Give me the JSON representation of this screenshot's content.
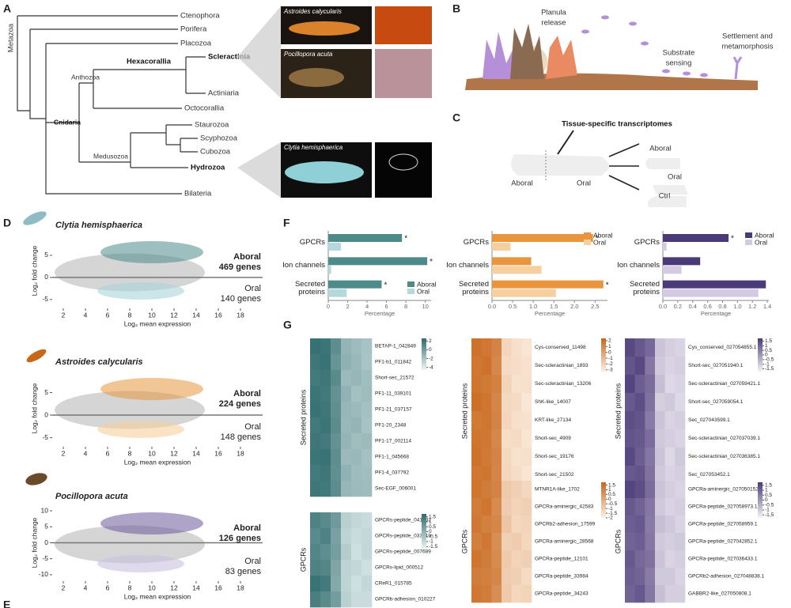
{
  "panels": [
    "A",
    "B",
    "C",
    "D",
    "E",
    "F",
    "G"
  ],
  "A": {
    "root": "Metazoa",
    "taxa": [
      "Ctenophora",
      "Porifera",
      "Placozoa",
      "Scleractinia",
      "Actiniaria",
      "Octocorallia",
      "Staurozoa",
      "Scyphozoa",
      "Cubozoa",
      "Hydrozoa",
      "Bilateria"
    ],
    "clades": [
      "Hexacorallia",
      "Anthozoa",
      "Cnidaria",
      "Medusozoa"
    ],
    "photos": [
      "Astroides calycularis",
      "Pocillopora acuta",
      "Clytia hemisphaerica"
    ]
  },
  "B": {
    "labels": [
      [
        "Planula",
        "release"
      ],
      [
        "Substrate",
        "sensing"
      ],
      [
        "Settlement and",
        "metamorphosis"
      ]
    ]
  },
  "C": {
    "title": "Tissue-specific transcriptomes",
    "labels": [
      "Aboral",
      "Oral",
      "Aboral",
      "Oral",
      "Ctrl"
    ]
  },
  "chart_data": [
    {
      "type": "scatter",
      "title": "Clytia hemisphaerica",
      "xlabel": "Log₂ mean expression",
      "ylabel": "Log₂ fold change",
      "xlim": [
        1,
        20
      ],
      "xticks": [
        2,
        4,
        6,
        8,
        10,
        12,
        14,
        16,
        18
      ],
      "ylim": [
        -7,
        10
      ],
      "yticks": [
        -5,
        0,
        5
      ],
      "colors": [
        "#4f8a8b",
        "#a9d3d8"
      ],
      "annotations": [
        "Aboral",
        "469 genes",
        "Oral",
        "140 genes"
      ]
    },
    {
      "type": "scatter",
      "title": "Astroides calycularis",
      "xlabel": "Log₂ mean expression",
      "ylabel": "Log₂ fold change",
      "xlim": [
        1,
        20
      ],
      "xticks": [
        2,
        4,
        6,
        8,
        10,
        12,
        14,
        16,
        18
      ],
      "ylim": [
        -7,
        10
      ],
      "yticks": [
        -5,
        0,
        5
      ],
      "colors": [
        "#e8953e",
        "#f6cf9f"
      ],
      "annotations": [
        "Aboral",
        "224 genes",
        "Oral",
        "148 genes"
      ]
    },
    {
      "type": "scatter",
      "title": "Pocillopora acuta",
      "xlabel": "Log₂ mean expression",
      "ylabel": "Log₂ fold change",
      "xlim": [
        1,
        20
      ],
      "xticks": [
        2,
        4,
        6,
        8,
        10,
        12,
        14,
        16,
        18
      ],
      "ylim": [
        -12,
        12
      ],
      "yticks": [
        -10,
        -5,
        0,
        5,
        10
      ],
      "colors": [
        "#6a5a9a",
        "#c9bfe0"
      ],
      "annotations": [
        "Aboral",
        "126 genes",
        "Oral",
        "83 genes"
      ]
    },
    {
      "type": "bar",
      "orientation": "horizontal",
      "categories": [
        "GPCRs",
        "Ion channels",
        "Secreted proteins"
      ],
      "series": [
        {
          "name": "Aboral",
          "color": "#4f8a8b",
          "values": [
            7.6,
            10.2,
            5.5
          ]
        },
        {
          "name": "Oral",
          "color": "#b5d8dc",
          "values": [
            1.3,
            0.3,
            1.9
          ]
        }
      ],
      "xlim": [
        0,
        10.6
      ],
      "xticks": [
        0,
        2,
        4,
        6,
        8,
        10
      ],
      "xlabel": "Percentage",
      "legend": "bottom right",
      "annotations": [
        {
          "text": "*",
          "category": "GPCRs",
          "series": "Aboral"
        },
        {
          "text": "*",
          "category": "Ion channels",
          "series": "Aboral"
        },
        {
          "text": "*",
          "category": "Secreted proteins",
          "series": "Aboral"
        }
      ]
    },
    {
      "type": "bar",
      "orientation": "horizontal",
      "categories": [
        "GPCRs",
        "Ion channels",
        "Secreted proteins"
      ],
      "series": [
        {
          "name": "Aboral",
          "color": "#e8953e",
          "values": [
            2.45,
            0.95,
            2.7
          ]
        },
        {
          "name": "Oral",
          "color": "#f6cf9f",
          "values": [
            0.45,
            1.2,
            1.55
          ]
        }
      ],
      "xlim": [
        0,
        2.8
      ],
      "xticks": [
        {
          "value": 0,
          "label": "0.0"
        },
        0.5,
        {
          "value": 1,
          "label": "1.0"
        },
        1.5,
        {
          "value": 2,
          "label": "2.0"
        },
        2.5
      ],
      "xlabel": "Percentage",
      "legend": "top right",
      "annotations": [
        {
          "text": "*",
          "category": "GPCRs",
          "series": "Aboral"
        },
        {
          "text": "*",
          "category": "Secreted proteins",
          "series": "Aboral"
        }
      ]
    },
    {
      "type": "bar",
      "orientation": "horizontal",
      "categories": [
        "GPCRs",
        "Ion channels",
        "Secreted proteins"
      ],
      "series": [
        {
          "name": "Aboral",
          "color": "#4b3a78",
          "values": [
            0.88,
            0.5,
            1.38
          ]
        },
        {
          "name": "Oral",
          "color": "#d4cbe3",
          "values": [
            0.05,
            0.25,
            1.28
          ]
        }
      ],
      "xlim": [
        0,
        1.42
      ],
      "xticks": [
        {
          "value": 0,
          "label": "0.0"
        },
        0.2,
        0.4,
        0.6,
        0.8,
        {
          "value": 1,
          "label": "1.0"
        },
        1.2,
        1.4
      ],
      "xlabel": "Percentage",
      "legend": "top right",
      "annotations": [
        {
          "text": "*",
          "category": "GPCRs",
          "series": "Aboral"
        }
      ]
    },
    {
      "type": "heatmap",
      "label": "Secreted proteins",
      "rows": [
        "BETAP-1_042849",
        "PF1-b1_011842",
        "Short-sec_21572",
        "PF1-11_039101",
        "PF1-21_037157",
        "PF1-20_2348",
        "PF1-17_002114",
        "PF1-1_045668",
        "PF1-4_037792",
        "Sec-EGF_006001"
      ],
      "values": [
        [
          2.3,
          2.1,
          0.8,
          -1.2,
          -1.6,
          -1.9
        ],
        [
          2.0,
          2.2,
          0.5,
          -1.0,
          -1.4,
          -2.0
        ],
        [
          1.8,
          2.0,
          1.0,
          -1.5,
          -1.3,
          -1.7
        ],
        [
          2.1,
          1.9,
          0.6,
          -1.1,
          -1.8,
          -1.6
        ],
        [
          2.2,
          2.0,
          0.7,
          -1.3,
          -1.5,
          -1.8
        ],
        [
          1.9,
          2.1,
          0.9,
          -1.4,
          -1.2,
          -1.9
        ],
        [
          2.0,
          1.8,
          0.6,
          -1.2,
          -1.7,
          -1.5
        ],
        [
          2.1,
          2.2,
          0.8,
          -1.5,
          -1.4,
          -1.8
        ],
        [
          1.8,
          2.0,
          0.7,
          -1.1,
          -1.6,
          -1.7
        ],
        [
          2.0,
          1.9,
          0.9,
          -1.3,
          -1.5,
          -1.6
        ]
      ],
      "colors": [
        "#eef6f6",
        "#2f6b6e"
      ],
      "clim": [
        -4.6,
        2.6
      ],
      "cticks": [
        2,
        0,
        -2,
        -4
      ]
    },
    {
      "type": "heatmap",
      "label": "GPCRs",
      "rows": [
        "GPCRs-peptide_041592",
        "GPCRs-peptide_033219",
        "GPCRs-peptide_007689",
        "GPCRs-lipid_000512",
        "CReR1_015785",
        "GPCRb-adhesion_010227"
      ],
      "values": [
        [
          1.2,
          1.0,
          0.6,
          -0.8,
          -1.0,
          -1.1
        ],
        [
          1.0,
          1.2,
          0.4,
          -0.9,
          -1.1,
          -1.0
        ],
        [
          1.1,
          0.9,
          0.5,
          -0.7,
          -1.2,
          -1.0
        ],
        [
          1.2,
          1.1,
          0.3,
          -0.9,
          -1.0,
          -1.2
        ],
        [
          1.6,
          1.4,
          0.2,
          -0.9,
          -1.2,
          -1.0
        ],
        [
          1.3,
          1.0,
          0.5,
          -0.8,
          -1.1,
          -1.1
        ]
      ],
      "colors": [
        "#eef6f6",
        "#2f6b6e"
      ],
      "clim": [
        -1.8,
        1.8
      ],
      "cticks": [
        1.5,
        1,
        0.5,
        0,
        -0.5,
        -1,
        -1.5
      ]
    },
    {
      "type": "heatmap",
      "label": "Secreted proteins",
      "rows": [
        "Cys-conserved_11498",
        "Sec-scleractinian_1893",
        "Sec-scleractinian_13206",
        "ShK-like_14007",
        "KRT-like_27134",
        "Short-sec_4909",
        "Short-sec_19176",
        "Short-sec_21502"
      ],
      "values": [
        [
          1.9,
          1.7,
          1.2,
          -2.2,
          -2.6,
          -2.8
        ],
        [
          1.7,
          1.9,
          1.0,
          -2.4,
          -2.5,
          -2.7
        ],
        [
          1.8,
          1.6,
          1.3,
          -2.1,
          -2.7,
          -2.6
        ],
        [
          2.0,
          1.8,
          1.1,
          -2.3,
          -2.4,
          -2.9
        ],
        [
          1.6,
          1.8,
          1.2,
          -2.2,
          -2.6,
          -2.7
        ],
        [
          1.8,
          1.7,
          1.0,
          -2.5,
          -2.4,
          -2.8
        ],
        [
          1.9,
          1.6,
          1.2,
          -2.3,
          -2.7,
          -2.6
        ],
        [
          1.7,
          1.8,
          1.1,
          -2.2,
          -2.5,
          -2.8
        ]
      ],
      "colors": [
        "#fdf1e4",
        "#c8661a"
      ],
      "clim": [
        -3.3,
        2.4
      ],
      "cticks": [
        2,
        1,
        0,
        -1,
        -2,
        -3
      ]
    },
    {
      "type": "heatmap",
      "label": "GPCRs",
      "rows": [
        "MTNR1A-like_1702",
        "GPCRa-aminergic_42583",
        "GPCRb2-adhesion_17599",
        "GPCRa-aminergic_28568",
        "GPCRa-peptide_12101",
        "GPCRa-peptide_33984",
        "GPCRa-peptide_34243"
      ],
      "values": [
        [
          1.4,
          1.2,
          1.0,
          -0.9,
          -1.1,
          -1.3
        ],
        [
          1.2,
          1.4,
          0.8,
          -1.0,
          -1.2,
          -1.1
        ],
        [
          1.3,
          1.1,
          0.9,
          -0.8,
          -1.3,
          -1.2
        ],
        [
          1.1,
          1.3,
          0.7,
          -1.1,
          -1.0,
          -1.3
        ],
        [
          1.4,
          1.2,
          0.8,
          -0.9,
          -1.2,
          -1.1
        ],
        [
          1.2,
          1.1,
          0.9,
          -1.0,
          -1.1,
          -1.4
        ],
        [
          1.3,
          1.2,
          0.7,
          -0.9,
          -1.3,
          -1.2
        ]
      ],
      "colors": [
        "#fdf1e4",
        "#c8661a"
      ],
      "clim": [
        -2,
        1.8
      ],
      "cticks": [
        1.5,
        1,
        0.5,
        0,
        -0.5,
        -1,
        -1.5,
        -2
      ]
    },
    {
      "type": "heatmap",
      "label": "Secreted proteins",
      "rows": [
        "Cys_conserved_027054855.1",
        "Short-sec_027051940.1",
        "Sec-scleractinian_027059421.1",
        "Short-sec_027059054.1",
        "Sec_027043599.1",
        "Sec-scleractinian_027037039.1",
        "Sec-scleractinian_027036385.1",
        "Sec_027053452.1"
      ],
      "values": [
        [
          1.5,
          1.2,
          0.9,
          -0.9,
          -1.1,
          -1.2
        ],
        [
          1.3,
          1.5,
          0.6,
          -1.0,
          -1.2,
          -1.1
        ],
        [
          1.6,
          1.1,
          0.8,
          -0.8,
          -1.3,
          -1.2
        ],
        [
          1.2,
          1.4,
          0.7,
          -1.1,
          -1.0,
          -1.3
        ],
        [
          1.4,
          1.3,
          0.5,
          -0.9,
          -1.2,
          -1.1
        ],
        [
          1.3,
          1.2,
          0.8,
          -1.0,
          -1.1,
          -1.2
        ],
        [
          1.5,
          1.1,
          0.6,
          -0.9,
          -1.3,
          -1.0
        ],
        [
          1.2,
          1.3,
          0.7,
          -1.0,
          -1.2,
          -1.1
        ]
      ],
      "colors": [
        "#f5f2f8",
        "#4b3a78"
      ],
      "clim": [
        -1.8,
        1.8
      ],
      "cticks": [
        1.5,
        1,
        0.5,
        0,
        -0.5,
        -1,
        -1.5
      ]
    },
    {
      "type": "heatmap",
      "label": "GPCRs",
      "rows": [
        "GPCRa-aminergic_027050152.1",
        "GPCRa-peptide_027058973.1",
        "GPCRa-peptide_027058959.1",
        "GPCRa-peptide_027042852.1",
        "GPCRa-peptide_027036433.1",
        "GPCRb2-adhesion_027048838.1",
        "GABBR2-like_027050808.1"
      ],
      "values": [
        [
          1.6,
          1.4,
          0.8,
          -0.9,
          -1.1,
          -1.2
        ],
        [
          1.2,
          1.0,
          0.6,
          -1.0,
          -1.2,
          -1.1
        ],
        [
          1.1,
          1.2,
          0.5,
          -0.8,
          -1.0,
          -1.2
        ],
        [
          1.0,
          1.1,
          0.6,
          -1.0,
          -1.1,
          -1.0
        ],
        [
          1.2,
          0.9,
          0.7,
          -0.9,
          -1.2,
          -1.1
        ],
        [
          1.1,
          1.0,
          0.5,
          -1.0,
          -1.0,
          -1.2
        ],
        [
          1.0,
          1.2,
          0.6,
          -0.8,
          -1.1,
          -1.1
        ]
      ],
      "colors": [
        "#f5f2f8",
        "#4b3a78"
      ],
      "clim": [
        -1.8,
        1.8
      ],
      "cticks": [
        1.5,
        1,
        0.5,
        0,
        -0.5,
        -1,
        -1.5
      ]
    }
  ]
}
